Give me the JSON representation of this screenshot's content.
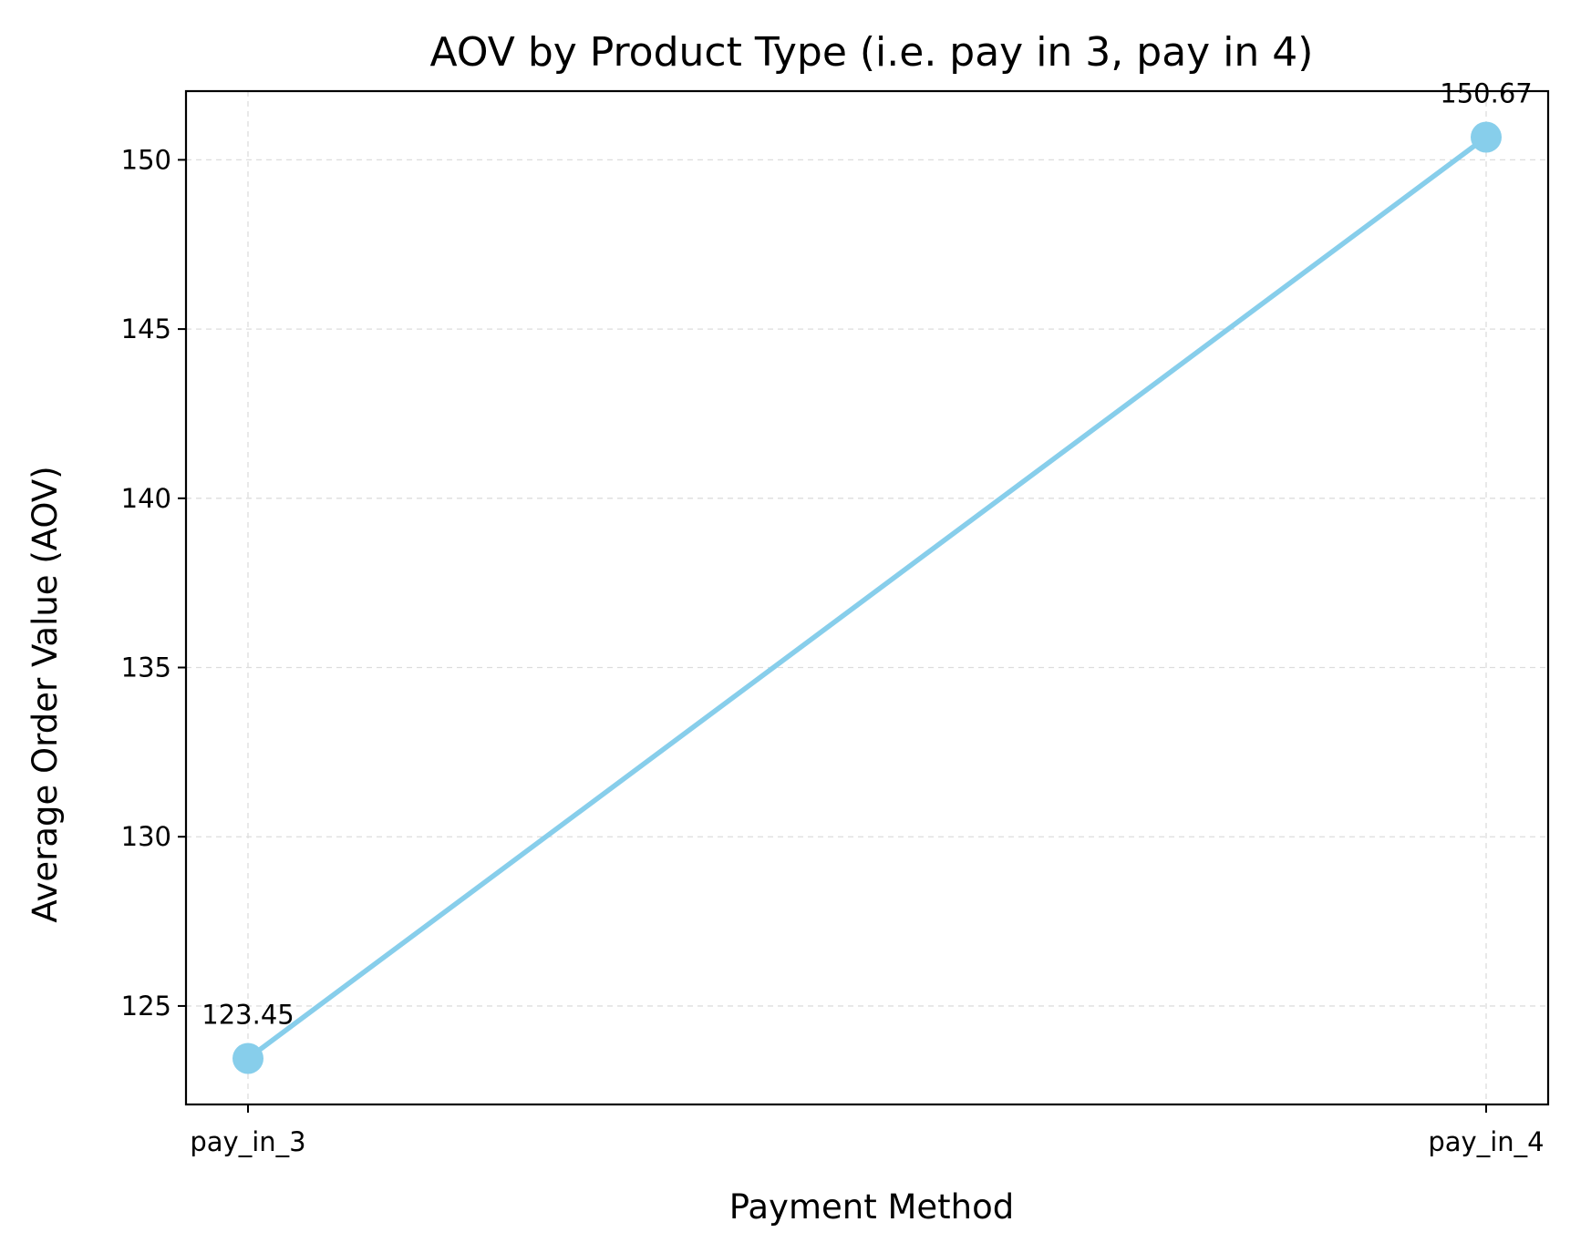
{
  "chart_data": {
    "type": "line",
    "title": "AOV by Product Type (i.e. pay in 3, pay in 4)",
    "xlabel": "Payment Method",
    "ylabel": "Average Order Value (AOV)",
    "categories": [
      "pay_in_3",
      "pay_in_4"
    ],
    "values": [
      123.45,
      150.67
    ],
    "data_labels": [
      "123.45",
      "150.67"
    ],
    "ylim": [
      122.09,
      152.03
    ],
    "yticks": [
      125,
      130,
      135,
      140,
      145,
      150
    ],
    "ytick_labels": [
      "125",
      "130",
      "135",
      "140",
      "145",
      "150"
    ],
    "grid": true,
    "legend": "none",
    "colors": {
      "line": "#87ceeb",
      "marker": "#87ceeb",
      "grid": "#dddddd",
      "frame": "#000000"
    }
  }
}
